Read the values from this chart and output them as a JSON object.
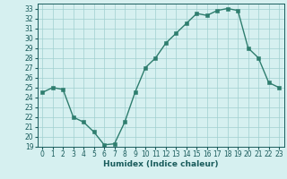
{
  "x": [
    0,
    1,
    2,
    3,
    4,
    5,
    6,
    7,
    8,
    9,
    10,
    11,
    12,
    13,
    14,
    15,
    16,
    17,
    18,
    19,
    20,
    21,
    22,
    23
  ],
  "y": [
    24.5,
    25.0,
    24.8,
    22.0,
    21.5,
    20.5,
    19.2,
    19.3,
    21.5,
    24.5,
    27.0,
    28.0,
    29.5,
    30.5,
    31.5,
    32.5,
    32.3,
    32.8,
    33.0,
    32.8,
    29.0,
    28.0,
    25.5,
    25.0
  ],
  "line_color": "#2e7d6e",
  "marker_color": "#2e7d6e",
  "bg_color": "#d6f0f0",
  "grid_color": "#a0d0d0",
  "xlabel": "Humidex (Indice chaleur)",
  "ylim": [
    19,
    33.5
  ],
  "xlim": [
    -0.5,
    23.5
  ],
  "yticks": [
    19,
    20,
    21,
    22,
    23,
    24,
    25,
    26,
    27,
    28,
    29,
    30,
    31,
    32,
    33
  ],
  "xticks": [
    0,
    1,
    2,
    3,
    4,
    5,
    6,
    7,
    8,
    9,
    10,
    11,
    12,
    13,
    14,
    15,
    16,
    17,
    18,
    19,
    20,
    21,
    22,
    23
  ],
  "tick_fontsize": 5.5,
  "label_fontsize": 6.5,
  "line_width": 1.0,
  "marker_size": 2.5,
  "text_color": "#1a5c5c",
  "spine_color": "#1a5c5c"
}
